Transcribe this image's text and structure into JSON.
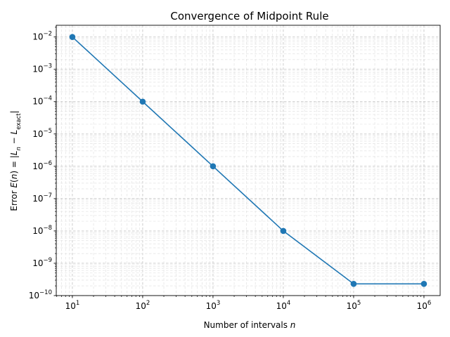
{
  "chart_data": {
    "type": "line",
    "title": "Convergence of Midpoint Rule",
    "xlabel": "Number of intervals n",
    "ylabel": "Error E(n) = |L_n − L_exact|",
    "xscale": "log",
    "yscale": "log",
    "xlim": [
      5.9,
      1700000
    ],
    "ylim": [
      1e-10,
      0.023
    ],
    "x_ticks": [
      {
        "value": 10,
        "base": "10",
        "exp": "1"
      },
      {
        "value": 100,
        "base": "10",
        "exp": "2"
      },
      {
        "value": 1000,
        "base": "10",
        "exp": "3"
      },
      {
        "value": 10000,
        "base": "10",
        "exp": "4"
      },
      {
        "value": 100000,
        "base": "10",
        "exp": "5"
      },
      {
        "value": 1000000,
        "base": "10",
        "exp": "6"
      }
    ],
    "y_ticks": [
      {
        "value": 1e-10,
        "base": "10",
        "exp": "−10"
      },
      {
        "value": 1e-09,
        "base": "10",
        "exp": "−9"
      },
      {
        "value": 1e-08,
        "base": "10",
        "exp": "−8"
      },
      {
        "value": 1e-07,
        "base": "10",
        "exp": "−7"
      },
      {
        "value": 1e-06,
        "base": "10",
        "exp": "−6"
      },
      {
        "value": 1e-05,
        "base": "10",
        "exp": "−5"
      },
      {
        "value": 0.0001,
        "base": "10",
        "exp": "−4"
      },
      {
        "value": 0.001,
        "base": "10",
        "exp": "−3"
      },
      {
        "value": 0.01,
        "base": "10",
        "exp": "−2"
      }
    ],
    "grid": "major and minor, dashed",
    "series": [
      {
        "color": "#1f77b4",
        "marker": "circle",
        "x": [
          10,
          100,
          1000,
          10000,
          100000,
          1000000
        ],
        "y": [
          0.01,
          0.0001,
          1e-06,
          1e-08,
          2.3e-10,
          2.3e-10
        ]
      }
    ]
  }
}
